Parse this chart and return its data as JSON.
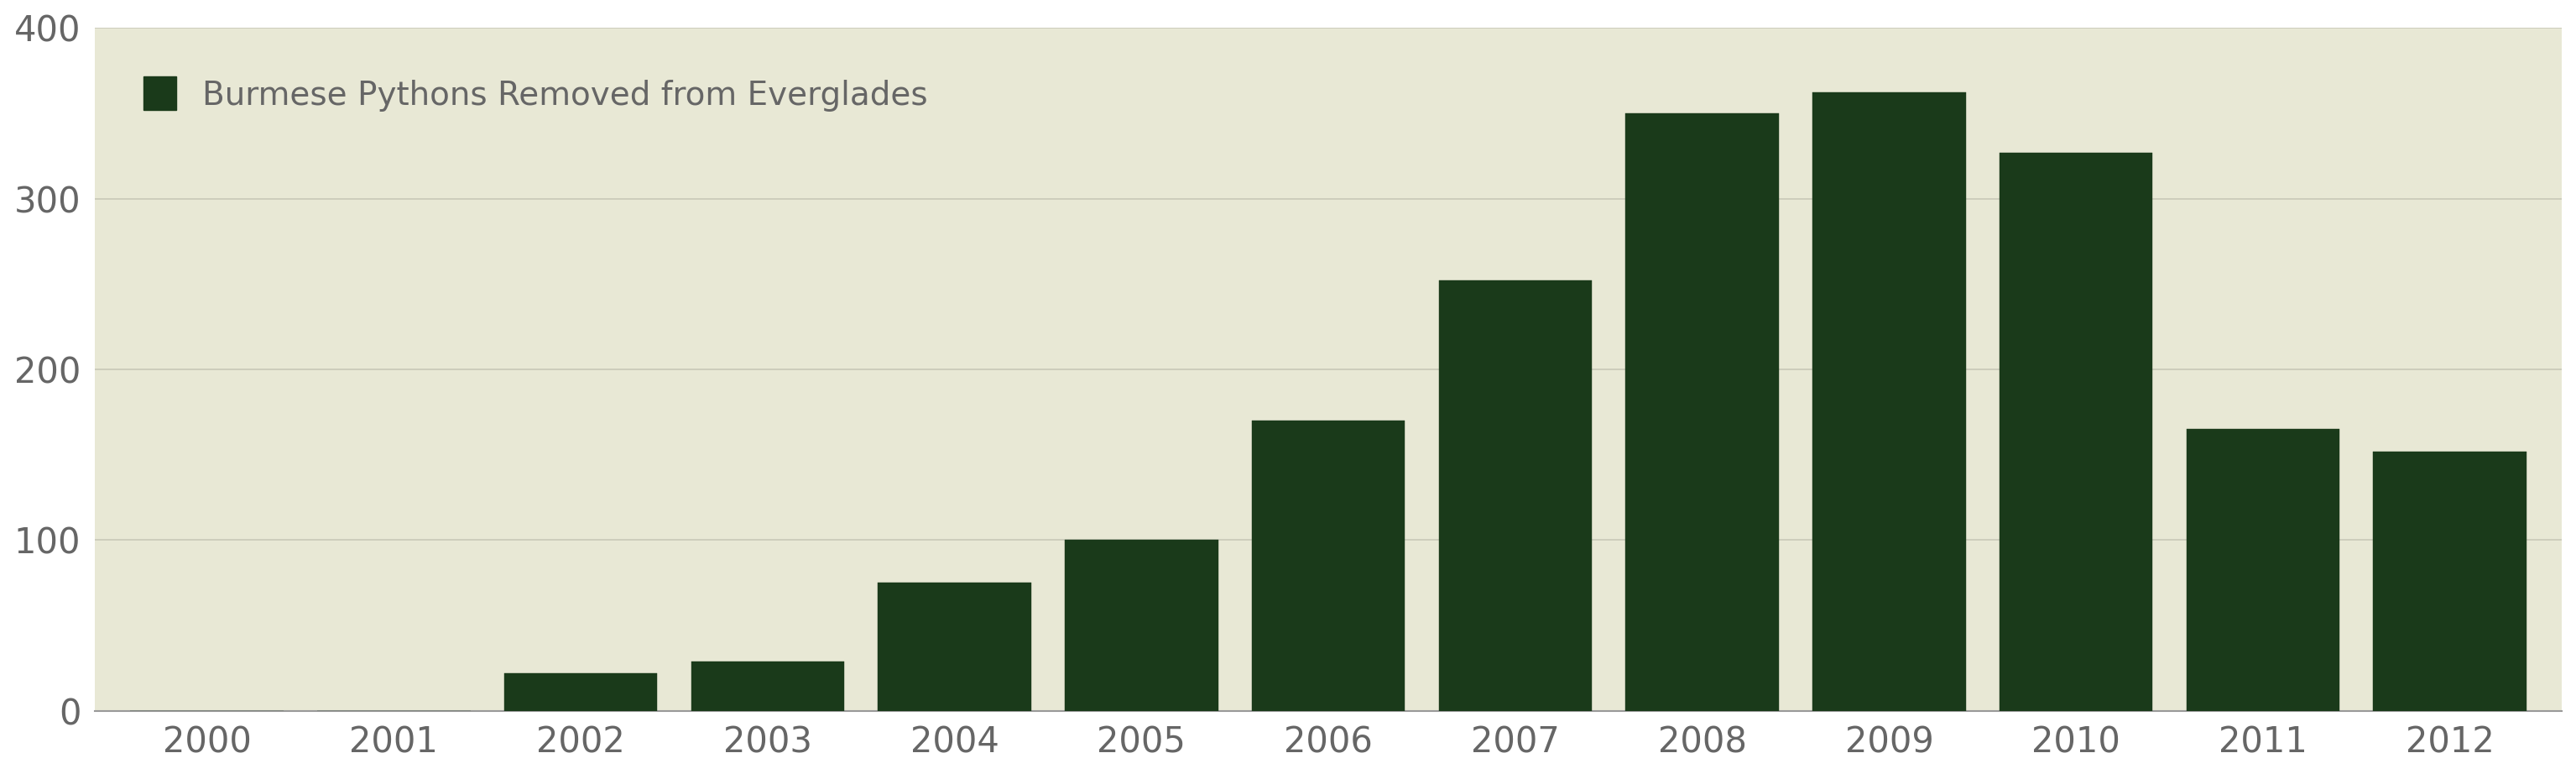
{
  "years": [
    2000,
    2001,
    2002,
    2003,
    2004,
    2005,
    2006,
    2007,
    2008,
    2009,
    2010,
    2011,
    2012
  ],
  "values": [
    0,
    0,
    22,
    29,
    75,
    100,
    170,
    252,
    350,
    362,
    327,
    165,
    152
  ],
  "bar_color": "#1a3a1a",
  "background_color": "#e8e8d5",
  "outer_background": "#ffffff",
  "grid_color": "#c8c8b8",
  "legend_label": "Burmese Pythons Removed from Everglades",
  "ylim": [
    0,
    400
  ],
  "yticks": [
    0,
    100,
    200,
    300,
    400
  ],
  "tick_label_color": "#666666",
  "tick_label_fontsize": 30,
  "legend_fontsize": 28,
  "bar_width": 0.82,
  "edge_color": "#1a3a1a"
}
